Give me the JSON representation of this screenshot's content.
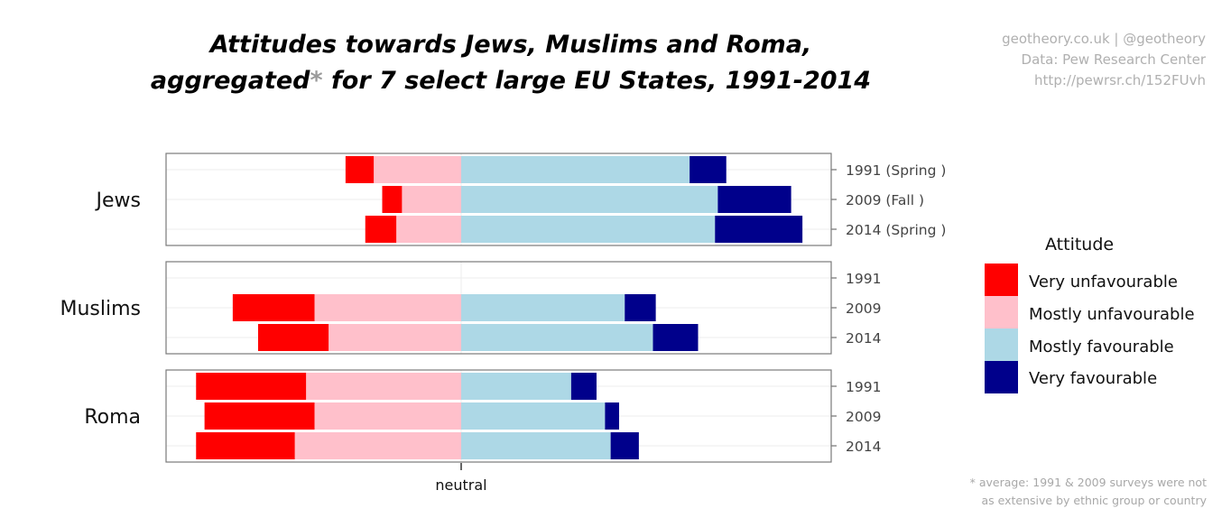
{
  "title_line1": "Attitudes towards Jews, Muslims and Roma,",
  "title_line2_a": "aggregated",
  "title_line2_ast": "*",
  "title_line2_b": " for 7 select large EU States, 1991-2014",
  "credits": [
    "geotheory.co.uk | @geotheory",
    "Data: Pew Research Center",
    "http://pewrsr.ch/152FUvh"
  ],
  "footnote": [
    "* average: 1991 & 2009 surveys were not",
    "as extensive by ethnic group or country"
  ],
  "x_label": "neutral",
  "legend_title": "Attitude",
  "colors": {
    "very_unfavourable": "#ff0000",
    "mostly_unfavourable": "#ffc0cb",
    "mostly_favourable": "#add8e6",
    "very_favourable": "#00008b"
  },
  "chart_data": {
    "type": "bar",
    "orientation": "horizontal-diverging",
    "units": "percent of respondents",
    "xlim": [
      -48,
      60
    ],
    "categories_order": [
      "Very unfavourable",
      "Mostly unfavourable",
      "Mostly favourable",
      "Very favourable"
    ],
    "legend_position": "right",
    "facets": [
      {
        "name": "Jews",
        "rows": [
          {
            "label": "1991 (Spring )",
            "very_unfavourable": 5,
            "mostly_unfavourable": 15.5,
            "mostly_favourable": 40.5,
            "very_favourable": 6.5
          },
          {
            "label": "2009 (Fall )",
            "very_unfavourable": 3.5,
            "mostly_unfavourable": 10.5,
            "mostly_favourable": 45.5,
            "very_favourable": 13
          },
          {
            "label": "2014 (Spring )",
            "very_unfavourable": 5.5,
            "mostly_unfavourable": 11.5,
            "mostly_favourable": 45,
            "very_favourable": 15.5
          }
        ]
      },
      {
        "name": "Muslims",
        "rows": [
          {
            "label": "1991",
            "very_unfavourable": null,
            "mostly_unfavourable": null,
            "mostly_favourable": null,
            "very_favourable": null
          },
          {
            "label": "2009",
            "very_unfavourable": 14.5,
            "mostly_unfavourable": 26,
            "mostly_favourable": 29,
            "very_favourable": 5.5
          },
          {
            "label": "2014",
            "very_unfavourable": 12.5,
            "mostly_unfavourable": 23.5,
            "mostly_favourable": 34,
            "very_favourable": 8
          }
        ]
      },
      {
        "name": "Roma",
        "rows": [
          {
            "label": "1991",
            "very_unfavourable": 19.5,
            "mostly_unfavourable": 27.5,
            "mostly_favourable": 19.5,
            "very_favourable": 4.5
          },
          {
            "label": "2009",
            "very_unfavourable": 19.5,
            "mostly_unfavourable": 26,
            "mostly_favourable": 25.5,
            "very_favourable": 2.5
          },
          {
            "label": "2014",
            "very_unfavourable": 17.5,
            "mostly_unfavourable": 29.5,
            "mostly_favourable": 26.5,
            "very_favourable": 5
          }
        ]
      }
    ]
  }
}
